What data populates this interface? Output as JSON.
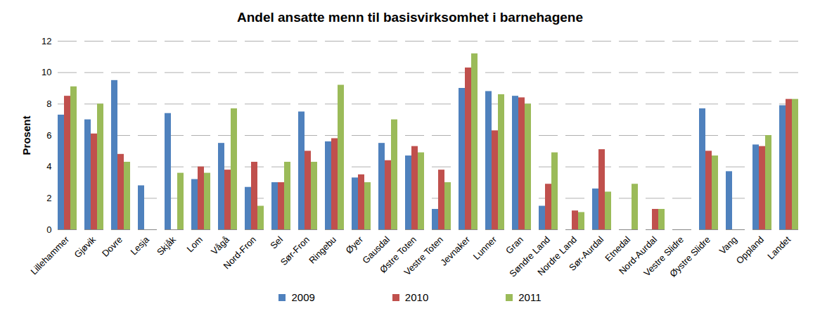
{
  "chart_data": {
    "type": "bar",
    "title": "Andel ansatte menn til basisvirksomhet i barnehagene",
    "y_label": "Prosent",
    "categories": [
      "Lillehammer",
      "Gjøvik",
      "Dovre",
      "Lesja",
      "Skjåk",
      "Lom",
      "Vågå",
      "Nord-Fron",
      "Sel",
      "Sør-Fron",
      "Ringebu",
      "Øyer",
      "Gausdal",
      "Østre Toten",
      "Vestre Toten",
      "Jevnaker",
      "Lunner",
      "Gran",
      "Søndre Land",
      "Nordre Land",
      "Sør-Aurdal",
      "Etnedal",
      "Nord-Aurdal",
      "Vestre Slidre",
      "Øystre Slidre",
      "Vang",
      "Oppland",
      "Landet"
    ],
    "series": [
      {
        "name": "2009",
        "color": "#4f81bd",
        "values": [
          7.3,
          7.0,
          9.5,
          2.8,
          7.4,
          3.2,
          5.5,
          2.7,
          3.0,
          7.5,
          5.6,
          3.3,
          5.5,
          4.7,
          1.3,
          9.0,
          8.8,
          8.5,
          1.5,
          0,
          2.6,
          0,
          0,
          0,
          7.7,
          3.7,
          5.4,
          7.9
        ]
      },
      {
        "name": "2010",
        "color": "#c0504d",
        "values": [
          8.5,
          6.1,
          4.8,
          0,
          0,
          4.0,
          3.8,
          4.3,
          3.0,
          5.0,
          5.8,
          3.5,
          4.4,
          5.3,
          3.8,
          10.3,
          6.3,
          8.4,
          2.9,
          1.2,
          5.1,
          0,
          1.3,
          0,
          5.0,
          0,
          5.3,
          8.3
        ]
      },
      {
        "name": "2011",
        "color": "#9bbb59",
        "values": [
          9.1,
          8.0,
          4.3,
          0,
          3.6,
          3.6,
          7.7,
          1.5,
          4.3,
          4.3,
          9.2,
          3.0,
          7.0,
          4.9,
          3.0,
          11.2,
          8.6,
          8.0,
          4.9,
          1.1,
          2.4,
          2.9,
          1.3,
          0,
          4.7,
          0,
          6.0,
          8.3
        ]
      }
    ],
    "ylim": [
      0,
      12
    ],
    "yticks": [
      0,
      2,
      4,
      6,
      8,
      10,
      12
    ],
    "grid": true,
    "legend": "bottom"
  }
}
